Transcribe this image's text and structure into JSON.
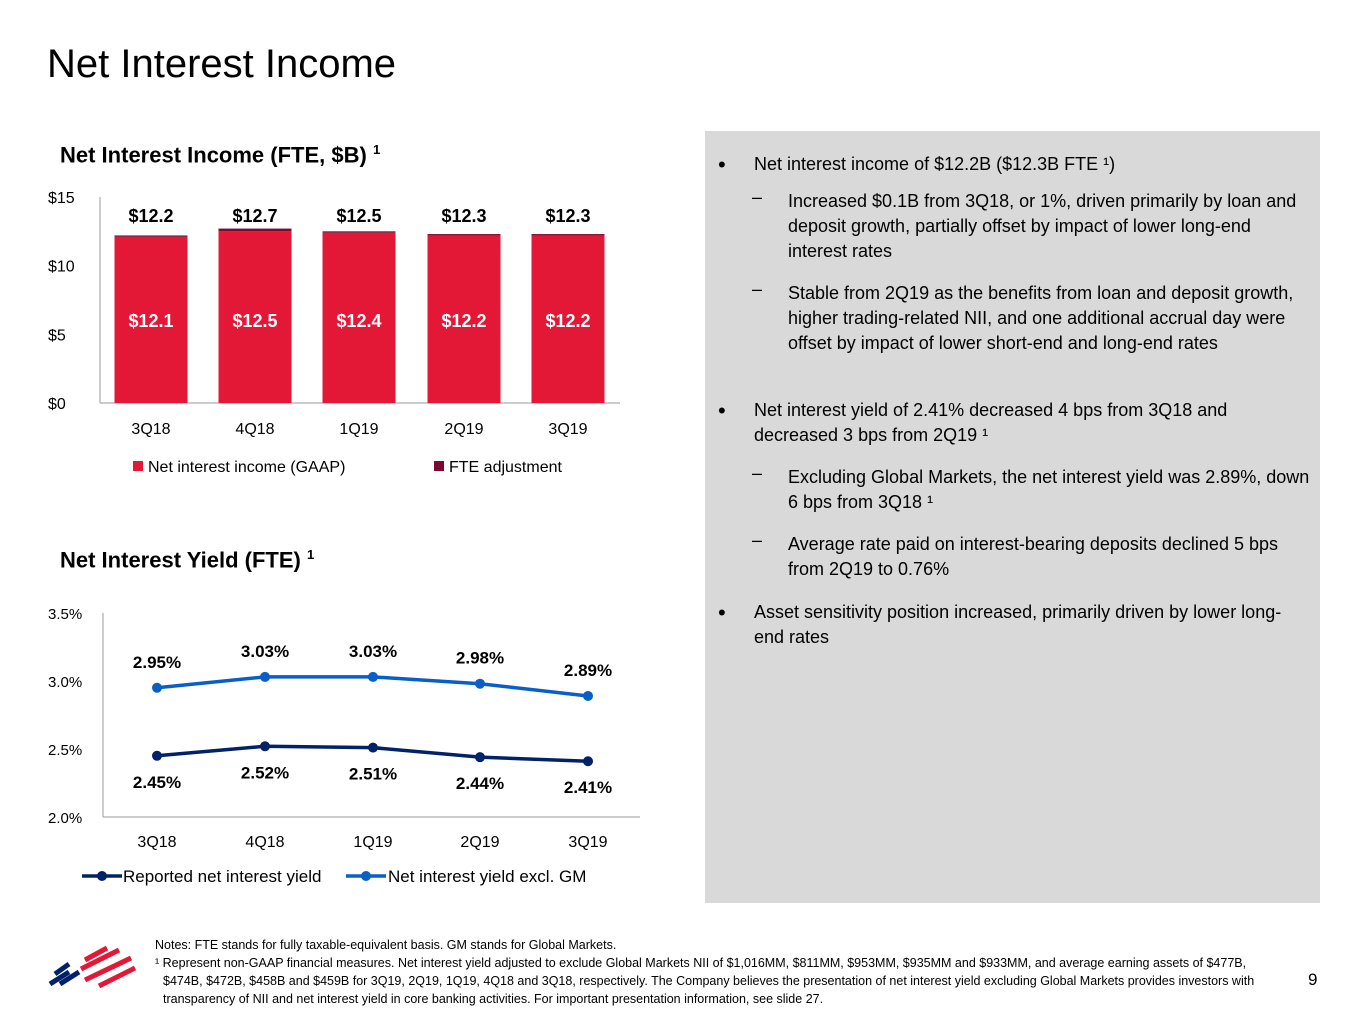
{
  "title": "Net Interest Income",
  "colors": {
    "gaap": "#e31837",
    "fte": "#7b0a30",
    "reported": "#012169",
    "excl_gm": "#0a5ec8",
    "panel": "#d9d9d9"
  },
  "chart_data": [
    {
      "type": "bar",
      "title": "Net Interest Income (FTE, $B)",
      "title_sup": "1",
      "categories": [
        "3Q18",
        "4Q18",
        "1Q19",
        "2Q19",
        "3Q19"
      ],
      "stacked": true,
      "ylim": [
        0,
        15
      ],
      "yticks": [
        "$0",
        "$5",
        "$10",
        "$15"
      ],
      "series": [
        {
          "name": "Net interest income (GAAP)",
          "values": [
            12.1,
            12.5,
            12.4,
            12.2,
            12.2
          ],
          "labels": [
            "$12.1",
            "$12.5",
            "$12.4",
            "$12.2",
            "$12.2"
          ]
        },
        {
          "name": "FTE adjustment",
          "values": [
            0.1,
            0.2,
            0.1,
            0.1,
            0.1
          ]
        }
      ],
      "total_labels": [
        "$12.2",
        "$12.7",
        "$12.5",
        "$12.3",
        "$12.3"
      ],
      "legend": "bottom"
    },
    {
      "type": "line",
      "title": "Net Interest Yield (FTE)",
      "title_sup": "1",
      "categories": [
        "3Q18",
        "4Q18",
        "1Q19",
        "2Q19",
        "3Q19"
      ],
      "ylim": [
        2.0,
        3.5
      ],
      "yticks": [
        "2.0%",
        "2.5%",
        "3.0%",
        "3.5%"
      ],
      "series": [
        {
          "name": "Reported net interest yield",
          "values": [
            2.45,
            2.52,
            2.51,
            2.44,
            2.41
          ],
          "labels": [
            "2.45%",
            "2.52%",
            "2.51%",
            "2.44%",
            "2.41%"
          ]
        },
        {
          "name": "Net interest yield excl. GM",
          "values": [
            2.95,
            3.03,
            3.03,
            2.98,
            2.89
          ],
          "labels": [
            "2.95%",
            "3.03%",
            "3.03%",
            "2.98%",
            "2.89%"
          ]
        }
      ],
      "legend": "bottom"
    }
  ],
  "bullets": [
    {
      "level": 1,
      "text": "Net interest income of $12.2B ($12.3B FTE ¹)"
    },
    {
      "level": 2,
      "text": "Increased $0.1B from 3Q18, or 1%, driven primarily by loan and deposit growth, partially offset by impact of lower long-end interest rates"
    },
    {
      "level": 2,
      "text": "Stable from 2Q19 as the benefits from loan and deposit growth, higher trading-related NII, and one additional accrual day were offset by impact of lower short-end and long-end rates"
    },
    {
      "level": 1,
      "text": "Net interest yield of 2.41% decreased 4 bps from 3Q18 and decreased 3 bps from 2Q19 ¹"
    },
    {
      "level": 2,
      "text": "Excluding Global Markets, the net interest yield was 2.89%, down 6 bps from 3Q18 ¹"
    },
    {
      "level": 2,
      "text": "Average rate paid on interest-bearing deposits declined 5 bps from 2Q19 to 0.76%"
    },
    {
      "level": 1,
      "text": "Asset sensitivity position increased, primarily driven by lower long-end rates"
    }
  ],
  "notes": {
    "line1": "Notes: FTE stands for fully taxable-equivalent basis. GM stands for Global Markets.",
    "line2": "¹ Represent non-GAAP financial measures. Net interest yield adjusted to exclude Global Markets NII of $1,016MM, $811MM, $953MM, $935MM and $933MM, and average earning assets of $477B, $474B, $472B, $458B and $459B for 3Q19, 2Q19, 1Q19, 4Q18 and 3Q18, respectively. The Company believes the presentation of net interest yield excluding Global Markets provides investors with transparency of NII and net interest yield in core banking activities. For important presentation information, see slide 27."
  },
  "page_number": "9",
  "logo": "bank-flag-logo"
}
